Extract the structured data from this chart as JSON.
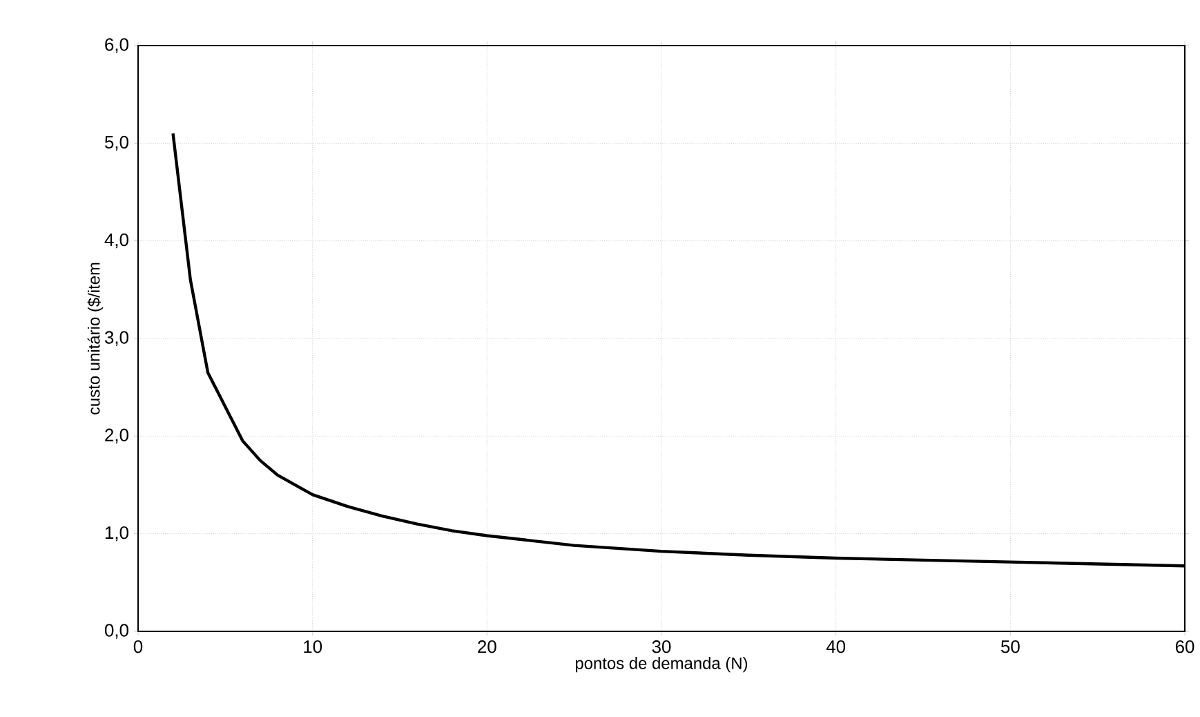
{
  "chart_data": {
    "type": "line",
    "xlabel": "pontos de demanda (N)",
    "ylabel": "custo unitário ($/item",
    "x": [
      2,
      3,
      4,
      5,
      6,
      7,
      8,
      9,
      10,
      12,
      14,
      16,
      18,
      20,
      25,
      30,
      35,
      40,
      45,
      50,
      55,
      60
    ],
    "series": [
      {
        "color": "#000000",
        "values": [
          5.1,
          3.6,
          2.65,
          2.3,
          1.95,
          1.75,
          1.6,
          1.5,
          1.4,
          1.28,
          1.18,
          1.1,
          1.03,
          0.98,
          0.88,
          0.82,
          0.78,
          0.75,
          0.73,
          0.71,
          0.69,
          0.67
        ]
      }
    ],
    "xlim": [
      0,
      60
    ],
    "xticks": [
      0,
      10,
      20,
      30,
      40,
      50,
      60
    ],
    "ylim": [
      0,
      6
    ],
    "yticks": [
      {
        "value": 0,
        "label": "0,0"
      },
      {
        "value": 1,
        "label": "1,0"
      },
      {
        "value": 2,
        "label": "2,0"
      },
      {
        "value": 3,
        "label": "3,0"
      },
      {
        "value": 4,
        "label": "4,0"
      },
      {
        "value": 5,
        "label": "5,0"
      },
      {
        "value": 6,
        "label": "6,0"
      }
    ],
    "grid": true,
    "marker": "none",
    "line_style": "solid"
  }
}
